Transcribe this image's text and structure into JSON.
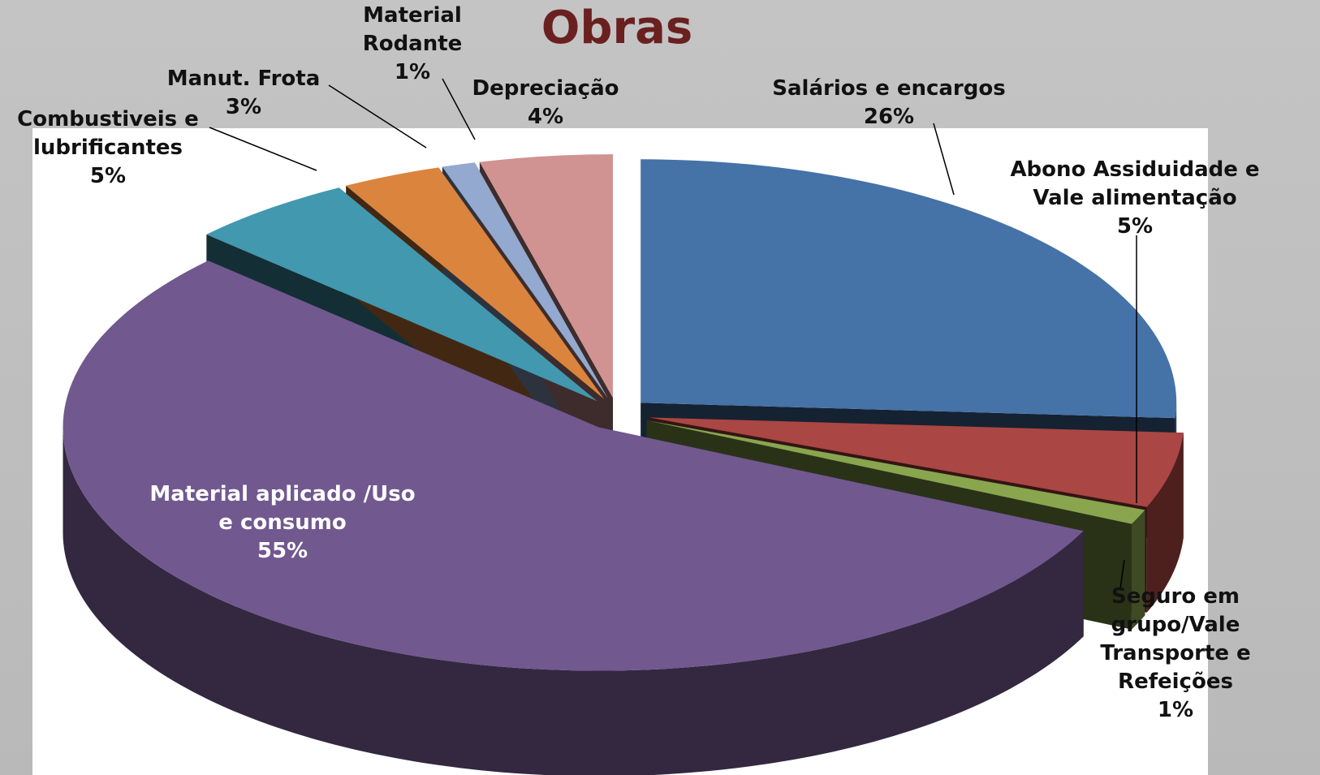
{
  "chart_data": {
    "type": "pie",
    "title": "Obras",
    "categories": [
      "Salários e encargos",
      "Abono Assiduidade e Vale alimentação",
      "Seguro em grupo/Vale Transporte e Refeições",
      "Material aplicado /Uso e consumo",
      "Combustiveis e lubrificantes",
      "Manut. Frota",
      "Material Rodante",
      "Depreciação"
    ],
    "values": [
      26,
      5,
      1,
      55,
      5,
      3,
      1,
      4
    ],
    "value_labels": [
      "26%",
      "5%",
      "1%",
      "55%",
      "5%",
      "3%",
      "1%",
      "4%"
    ],
    "colors": [
      "#4572a7",
      "#aa4643",
      "#89a54e",
      "#71588f",
      "#4198af",
      "#db843d",
      "#93a9cf",
      "#d09392"
    ]
  }
}
